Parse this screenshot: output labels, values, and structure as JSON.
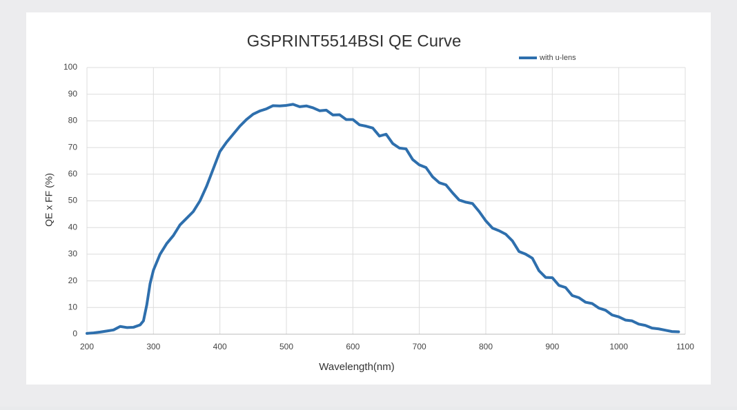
{
  "chart_data": {
    "type": "line",
    "title": "GSPRINT5514BSI QE Curve",
    "x_label": "Wavelength(nm)",
    "y_label": "QE x FF (%)",
    "x": [
      200,
      210,
      220,
      230,
      240,
      250,
      260,
      270,
      280,
      285,
      290,
      295,
      300,
      310,
      320,
      330,
      340,
      350,
      360,
      370,
      380,
      390,
      400,
      410,
      420,
      430,
      440,
      450,
      460,
      470,
      480,
      490,
      500,
      510,
      520,
      530,
      540,
      550,
      560,
      570,
      580,
      590,
      600,
      610,
      620,
      630,
      640,
      650,
      660,
      670,
      680,
      690,
      700,
      710,
      720,
      730,
      740,
      750,
      760,
      770,
      780,
      790,
      800,
      810,
      820,
      830,
      840,
      850,
      860,
      870,
      880,
      890,
      900,
      910,
      920,
      930,
      940,
      950,
      960,
      970,
      980,
      990,
      1000,
      1010,
      1020,
      1030,
      1040,
      1050,
      1060,
      1070,
      1080,
      1090
    ],
    "series": [
      {
        "name": "with u-lens",
        "color": "#2e6fad",
        "values": [
          0.3,
          0.5,
          0.8,
          1.2,
          1.6,
          2.9,
          2.5,
          2.6,
          3.5,
          5,
          11,
          19,
          24,
          30,
          34,
          37,
          41,
          43.5,
          46,
          50,
          55.5,
          62,
          68.5,
          72,
          75,
          78,
          80.5,
          82.5,
          83.7,
          84.5,
          85.7,
          85.6,
          85.8,
          86.2,
          85.3,
          85.6,
          84.9,
          83.8,
          84,
          82.2,
          82.3,
          80.5,
          80.5,
          78.5,
          78,
          77.3,
          74.3,
          75,
          71.5,
          69.8,
          69.5,
          65.5,
          63.5,
          62.5,
          59,
          56.8,
          56,
          53,
          50.3,
          49.5,
          49,
          46,
          42.5,
          39.8,
          38.8,
          37.5,
          35,
          31,
          30,
          28.5,
          23.8,
          21.3,
          21.2,
          18.3,
          17.5,
          14.5,
          13.7,
          12,
          11.5,
          9.8,
          9,
          7.2,
          6.5,
          5.3,
          5,
          3.8,
          3.3,
          2.3,
          2,
          1.5,
          1,
          0.9
        ]
      }
    ],
    "xlim": [
      200,
      1100
    ],
    "xticks": [
      200,
      300,
      400,
      500,
      600,
      700,
      800,
      900,
      1000,
      1100
    ],
    "ylim": [
      0,
      100
    ],
    "yticks": [
      0,
      10,
      20,
      30,
      40,
      50,
      60,
      70,
      80,
      90,
      100
    ],
    "grid": true,
    "legend": "top-right"
  }
}
